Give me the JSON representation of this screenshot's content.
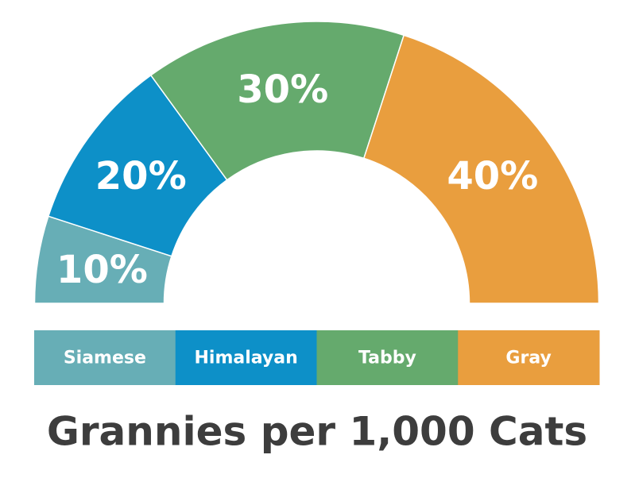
{
  "chart_data": {
    "type": "pie",
    "style": "semicircle-donut",
    "title": "Grannies per 1,000 Cats",
    "categories": [
      "Siamese",
      "Himalayan",
      "Tabby",
      "Gray"
    ],
    "values": [
      10,
      20,
      30,
      40
    ],
    "value_labels": [
      "10%",
      "20%",
      "30%",
      "40%"
    ],
    "colors": [
      "#67aeb6",
      "#0d90c8",
      "#65aa6d",
      "#e99e3e"
    ],
    "legend_position": "bottom"
  }
}
